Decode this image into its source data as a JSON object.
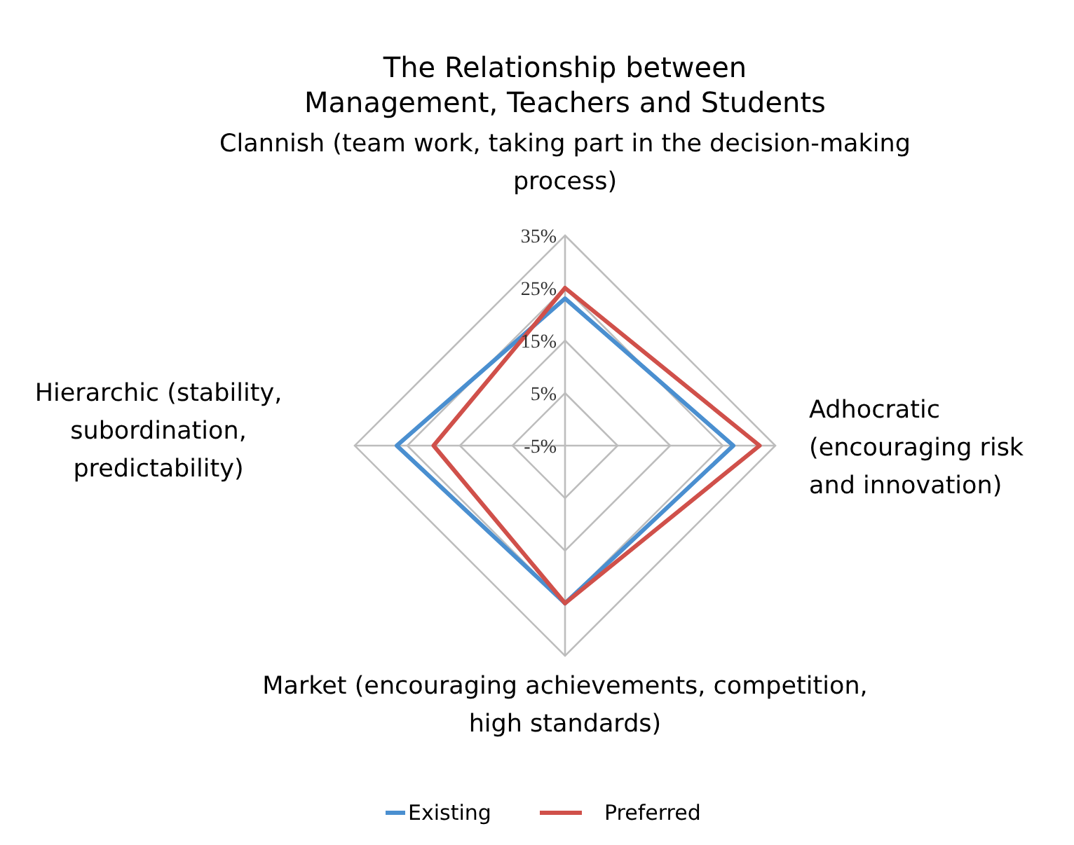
{
  "chart_data": {
    "type": "radar",
    "title": "The Relationship between\nManagement, Teachers and Students",
    "categories": [
      "Clannish (team work, taking part in the decision-making\nprocess)",
      "Adhocratic\n(encouraging risk\nand innovation)",
      "Market (encouraging achievements, competition,\nhigh standards)",
      "Hierarchic (stability,\nsubordination,\npredictability)"
    ],
    "series": [
      {
        "name": "Existing",
        "color": "#4a8fd0",
        "values": [
          23,
          27,
          25,
          27
        ]
      },
      {
        "name": "Preferred",
        "color": "#d0504a",
        "values": [
          25,
          32,
          25,
          20
        ]
      }
    ],
    "ylim": [
      -5,
      35
    ],
    "yticks": [
      {
        "value": -5,
        "label": "-5%"
      },
      {
        "value": 5,
        "label": "5%"
      },
      {
        "value": 15,
        "label": "15%"
      },
      {
        "value": 25,
        "label": "25%"
      },
      {
        "value": 35,
        "label": "35%"
      }
    ],
    "grid": true,
    "legend": "bottom"
  }
}
